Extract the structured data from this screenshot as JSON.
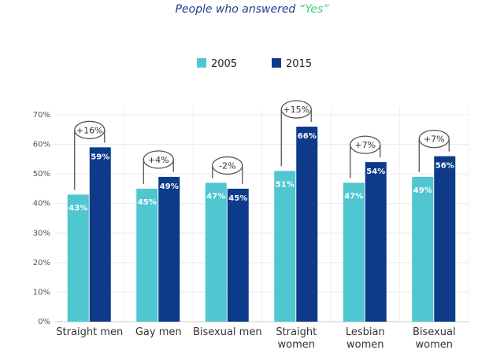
{
  "chart_data": {
    "type": "bar",
    "title": "People who answered",
    "title_highlight": "“Yes”",
    "categories": [
      [
        "Straight men"
      ],
      [
        "Gay men"
      ],
      [
        "Bisexual men"
      ],
      [
        "Straight",
        "women"
      ],
      [
        "Lesbian",
        "women"
      ],
      [
        "Bisexual",
        "women"
      ]
    ],
    "series": [
      {
        "name": "2005",
        "color": "#4fc6d0",
        "values": [
          43,
          45,
          47,
          51,
          47,
          49
        ]
      },
      {
        "name": "2015",
        "color": "#0d3b8a",
        "values": [
          59,
          49,
          45,
          66,
          54,
          56
        ]
      }
    ],
    "changes": [
      "+16%",
      "+4%",
      "-2%",
      "+15%",
      "+7%",
      "+7%"
    ],
    "yticks": [
      0,
      10,
      20,
      30,
      40,
      50,
      60,
      70
    ],
    "ylim": [
      0,
      70
    ],
    "yformat": "%",
    "legend": "top-center",
    "grid": true
  }
}
